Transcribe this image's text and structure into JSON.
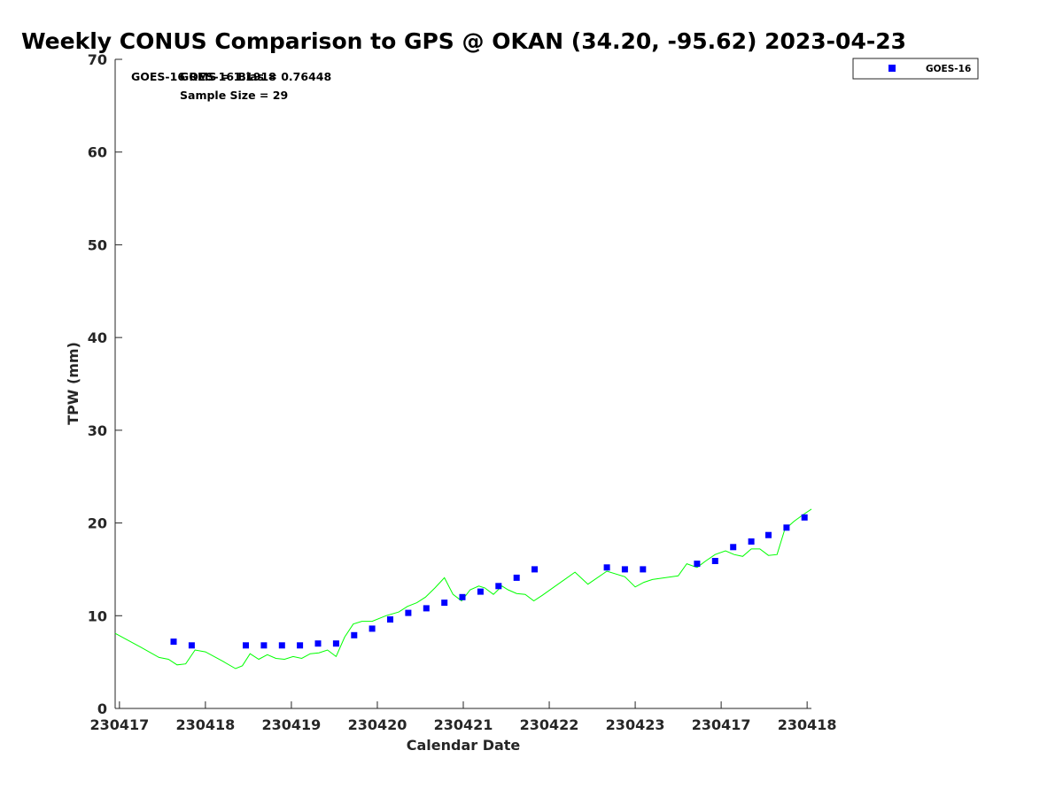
{
  "chart_data": {
    "type": "scatter",
    "title": "Weekly CONUS Comparison to GPS @ OKAN (34.20, -95.62) 2023-04-23",
    "xlabel": "Calendar Date",
    "ylabel": "TPW (mm)",
    "ylim": [
      0,
      70
    ],
    "yticks": [
      0,
      10,
      20,
      30,
      40,
      50,
      60,
      70
    ],
    "xlim": [
      -0.05,
      8.05
    ],
    "xticks": [
      {
        "x": 0,
        "label": "230417"
      },
      {
        "x": 1,
        "label": "230418"
      },
      {
        "x": 2,
        "label": "230419"
      },
      {
        "x": 3,
        "label": "230420"
      },
      {
        "x": 4,
        "label": "230421"
      },
      {
        "x": 5,
        "label": "230422"
      },
      {
        "x": 6,
        "label": "230423"
      },
      {
        "x": 7,
        "label": "230417"
      },
      {
        "x": 8,
        "label": "230418"
      }
    ],
    "grid": false,
    "legend_position": "top-right",
    "annotations": {
      "stat_label_a": "GOES-16 RMS = 1.1918",
      "stat_label_b": "GOES-16 Bias = 0.76448",
      "sample_size": "Sample Size = 29"
    },
    "series": [
      {
        "name": "GOES-16",
        "kind": "scatter",
        "marker": "square",
        "color": "#0000ff",
        "x": [
          0.63,
          0.84,
          1.47,
          1.68,
          1.89,
          2.1,
          2.31,
          2.52,
          2.73,
          2.94,
          3.15,
          3.36,
          3.57,
          3.78,
          3.99,
          4.2,
          4.41,
          4.62,
          4.83,
          5.67,
          5.88,
          6.09,
          6.72,
          6.93,
          7.14,
          7.35,
          7.55,
          7.76,
          7.97
        ],
        "y": [
          7.2,
          6.8,
          6.8,
          6.8,
          6.8,
          6.8,
          7.0,
          7.0,
          7.9,
          8.6,
          9.6,
          10.3,
          10.8,
          11.4,
          12.0,
          12.6,
          13.2,
          14.1,
          15.0,
          15.2,
          15.0,
          15.0,
          15.6,
          15.9,
          17.4,
          18.0,
          18.7,
          19.5,
          20.6
        ]
      },
      {
        "kind": "line",
        "color": "#00ff00",
        "x": [
          -0.05,
          0.25,
          0.46,
          0.57,
          0.67,
          0.77,
          0.88,
          1.0,
          1.2,
          1.35,
          1.43,
          1.52,
          1.62,
          1.72,
          1.82,
          1.92,
          2.02,
          2.12,
          2.22,
          2.32,
          2.42,
          2.52,
          2.62,
          2.72,
          2.82,
          2.94,
          3.1,
          3.25,
          3.35,
          3.46,
          3.56,
          3.67,
          3.78,
          3.88,
          3.98,
          4.08,
          4.18,
          4.25,
          4.35,
          4.45,
          4.52,
          4.62,
          4.72,
          4.82,
          4.92,
          5.3,
          5.45,
          5.67,
          5.88,
          6.0,
          6.1,
          6.2,
          6.5,
          6.6,
          6.72,
          6.82,
          6.93,
          7.05,
          7.15,
          7.25,
          7.35,
          7.45,
          7.55,
          7.65,
          7.74,
          7.85,
          7.97,
          8.05
        ],
        "y": [
          8.1,
          6.6,
          5.5,
          5.3,
          4.7,
          4.8,
          6.3,
          6.1,
          5.1,
          4.3,
          4.6,
          5.9,
          5.3,
          5.8,
          5.4,
          5.3,
          5.6,
          5.4,
          5.9,
          6.0,
          6.3,
          5.6,
          7.7,
          9.1,
          9.4,
          9.4,
          10.0,
          10.4,
          11.0,
          11.4,
          12.0,
          13.0,
          14.1,
          12.3,
          11.6,
          12.8,
          13.2,
          13.0,
          12.3,
          13.2,
          12.8,
          12.4,
          12.3,
          11.6,
          12.2,
          14.7,
          13.4,
          14.8,
          14.2,
          13.1,
          13.6,
          13.9,
          14.3,
          15.6,
          15.2,
          15.9,
          16.6,
          17.0,
          16.6,
          16.4,
          17.2,
          17.2,
          16.5,
          16.6,
          19.3,
          20.2,
          21.0,
          21.5
        ]
      }
    ]
  }
}
